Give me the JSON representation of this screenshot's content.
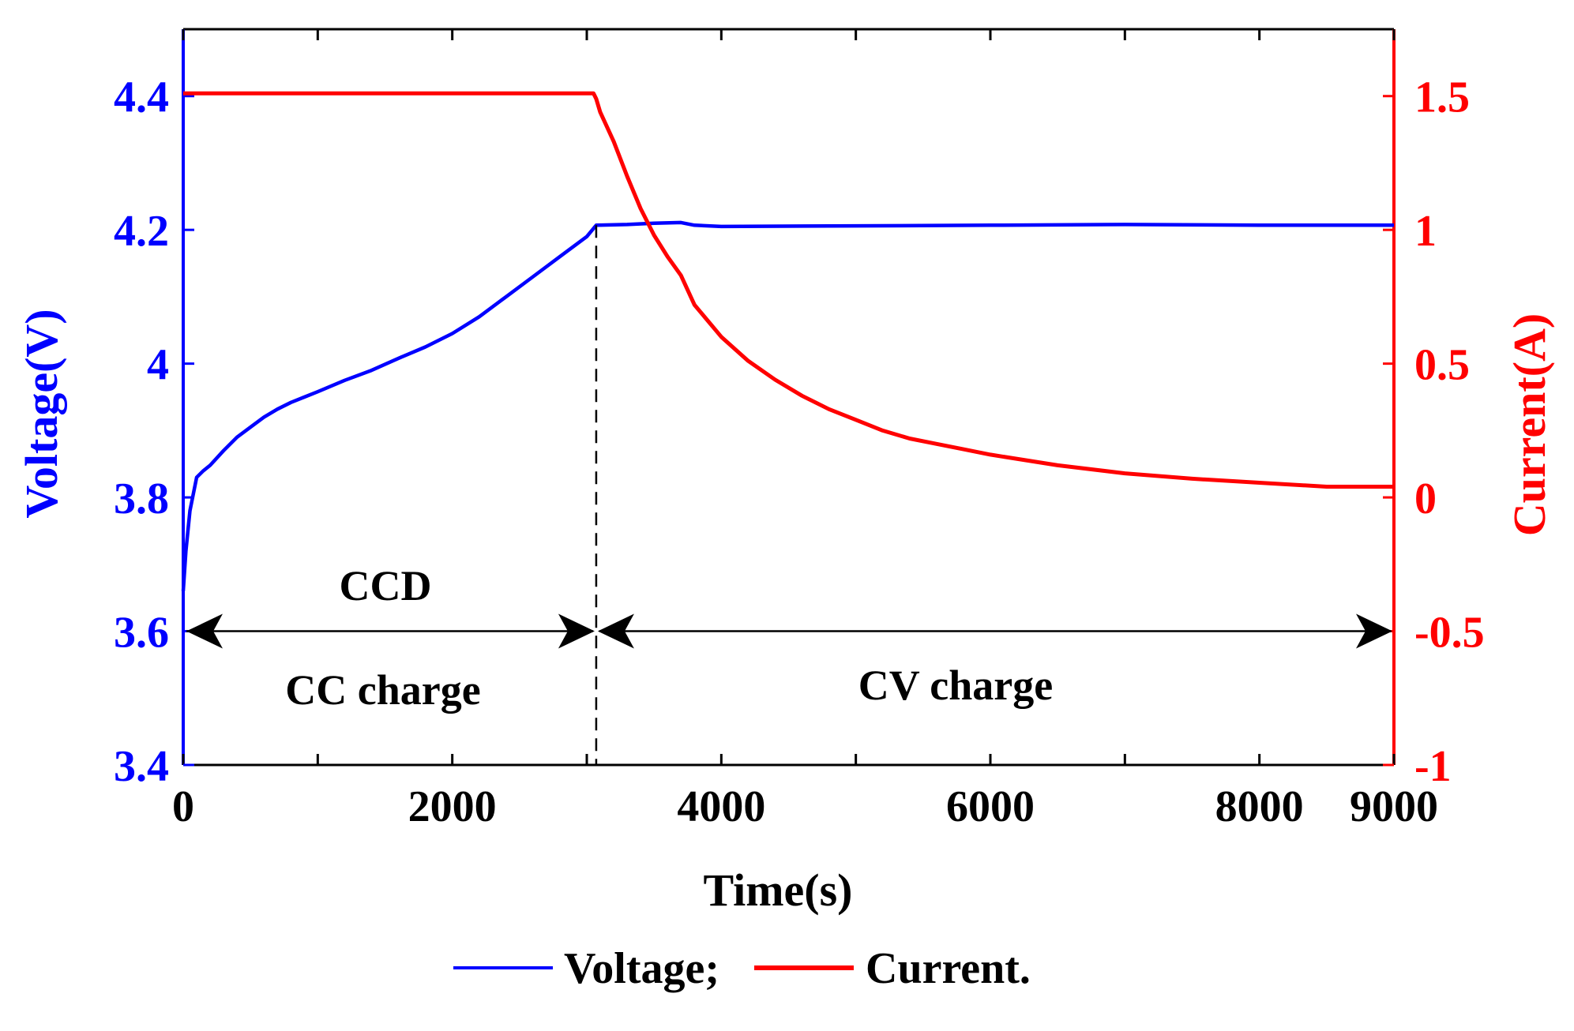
{
  "chart_data": {
    "type": "line",
    "title": "",
    "xlabel": "Time(s)",
    "ylabel": "Voltage(V)",
    "y2label": "Current(A)",
    "xlim": [
      0,
      9000
    ],
    "ylim": [
      3.4,
      4.5
    ],
    "y2lim": [
      -1,
      1.75
    ],
    "x_ticks": [
      0,
      2000,
      4000,
      6000,
      8000,
      9000
    ],
    "x_tick_labels": [
      "0",
      "2000",
      "4000",
      "6000",
      "8000",
      "9000"
    ],
    "y_ticks": [
      3.4,
      3.6,
      3.8,
      4.0,
      4.2,
      4.4
    ],
    "y_tick_labels": [
      "3.4",
      "3.6",
      "3.8",
      "4",
      "4.2",
      "4.4"
    ],
    "y2_ticks": [
      -1,
      -0.5,
      0,
      0.5,
      1,
      1.5
    ],
    "y2_tick_labels": [
      "-1",
      "-0.5",
      "0",
      "0.5",
      "1",
      "1.5"
    ],
    "series": [
      {
        "name": "Voltage;",
        "axis": "left",
        "color": "#0000ff",
        "x": [
          0,
          20,
          50,
          100,
          150,
          200,
          300,
          400,
          500,
          600,
          700,
          800,
          900,
          1000,
          1200,
          1400,
          1600,
          1800,
          2000,
          2200,
          2400,
          2600,
          2800,
          3000,
          3070,
          3300,
          3500,
          3700,
          3800,
          4000,
          5000,
          6000,
          7000,
          8000,
          9000
        ],
        "y": [
          3.66,
          3.72,
          3.78,
          3.83,
          3.84,
          3.848,
          3.87,
          3.89,
          3.905,
          3.92,
          3.932,
          3.942,
          3.95,
          3.958,
          3.975,
          3.99,
          4.008,
          4.025,
          4.045,
          4.07,
          4.1,
          4.13,
          4.16,
          4.19,
          4.207,
          4.208,
          4.21,
          4.211,
          4.207,
          4.205,
          4.206,
          4.207,
          4.208,
          4.207,
          4.207
        ]
      },
      {
        "name": "Current.",
        "axis": "right",
        "color": "#ff0000",
        "x": [
          0,
          500,
          1000,
          1500,
          2000,
          2500,
          3000,
          3050,
          3070,
          3100,
          3200,
          3300,
          3400,
          3500,
          3600,
          3700,
          3800,
          4000,
          4200,
          4400,
          4600,
          4800,
          5000,
          5200,
          5400,
          5600,
          5800,
          6000,
          6500,
          7000,
          7500,
          8000,
          8500,
          9000
        ],
        "y": [
          1.51,
          1.51,
          1.51,
          1.51,
          1.51,
          1.51,
          1.51,
          1.51,
          1.49,
          1.44,
          1.33,
          1.2,
          1.08,
          0.98,
          0.9,
          0.83,
          0.72,
          0.6,
          0.51,
          0.44,
          0.38,
          0.33,
          0.29,
          0.25,
          0.22,
          0.2,
          0.18,
          0.16,
          0.12,
          0.09,
          0.07,
          0.055,
          0.04,
          0.04
        ]
      }
    ],
    "vertical_line": {
      "x": 3070,
      "style": "dashed"
    },
    "annotations": {
      "region_arrow_y": 3.6,
      "ccd_label": "CCD",
      "cc_label": "CC charge",
      "cv_label": "CV charge",
      "split_x": 3070
    },
    "legend": {
      "placement": "bottom",
      "entries": [
        "Voltage;",
        "Current."
      ]
    },
    "grid": false
  },
  "colors": {
    "voltage": "#0000ff",
    "current": "#ff0000",
    "axis": "#000000"
  }
}
